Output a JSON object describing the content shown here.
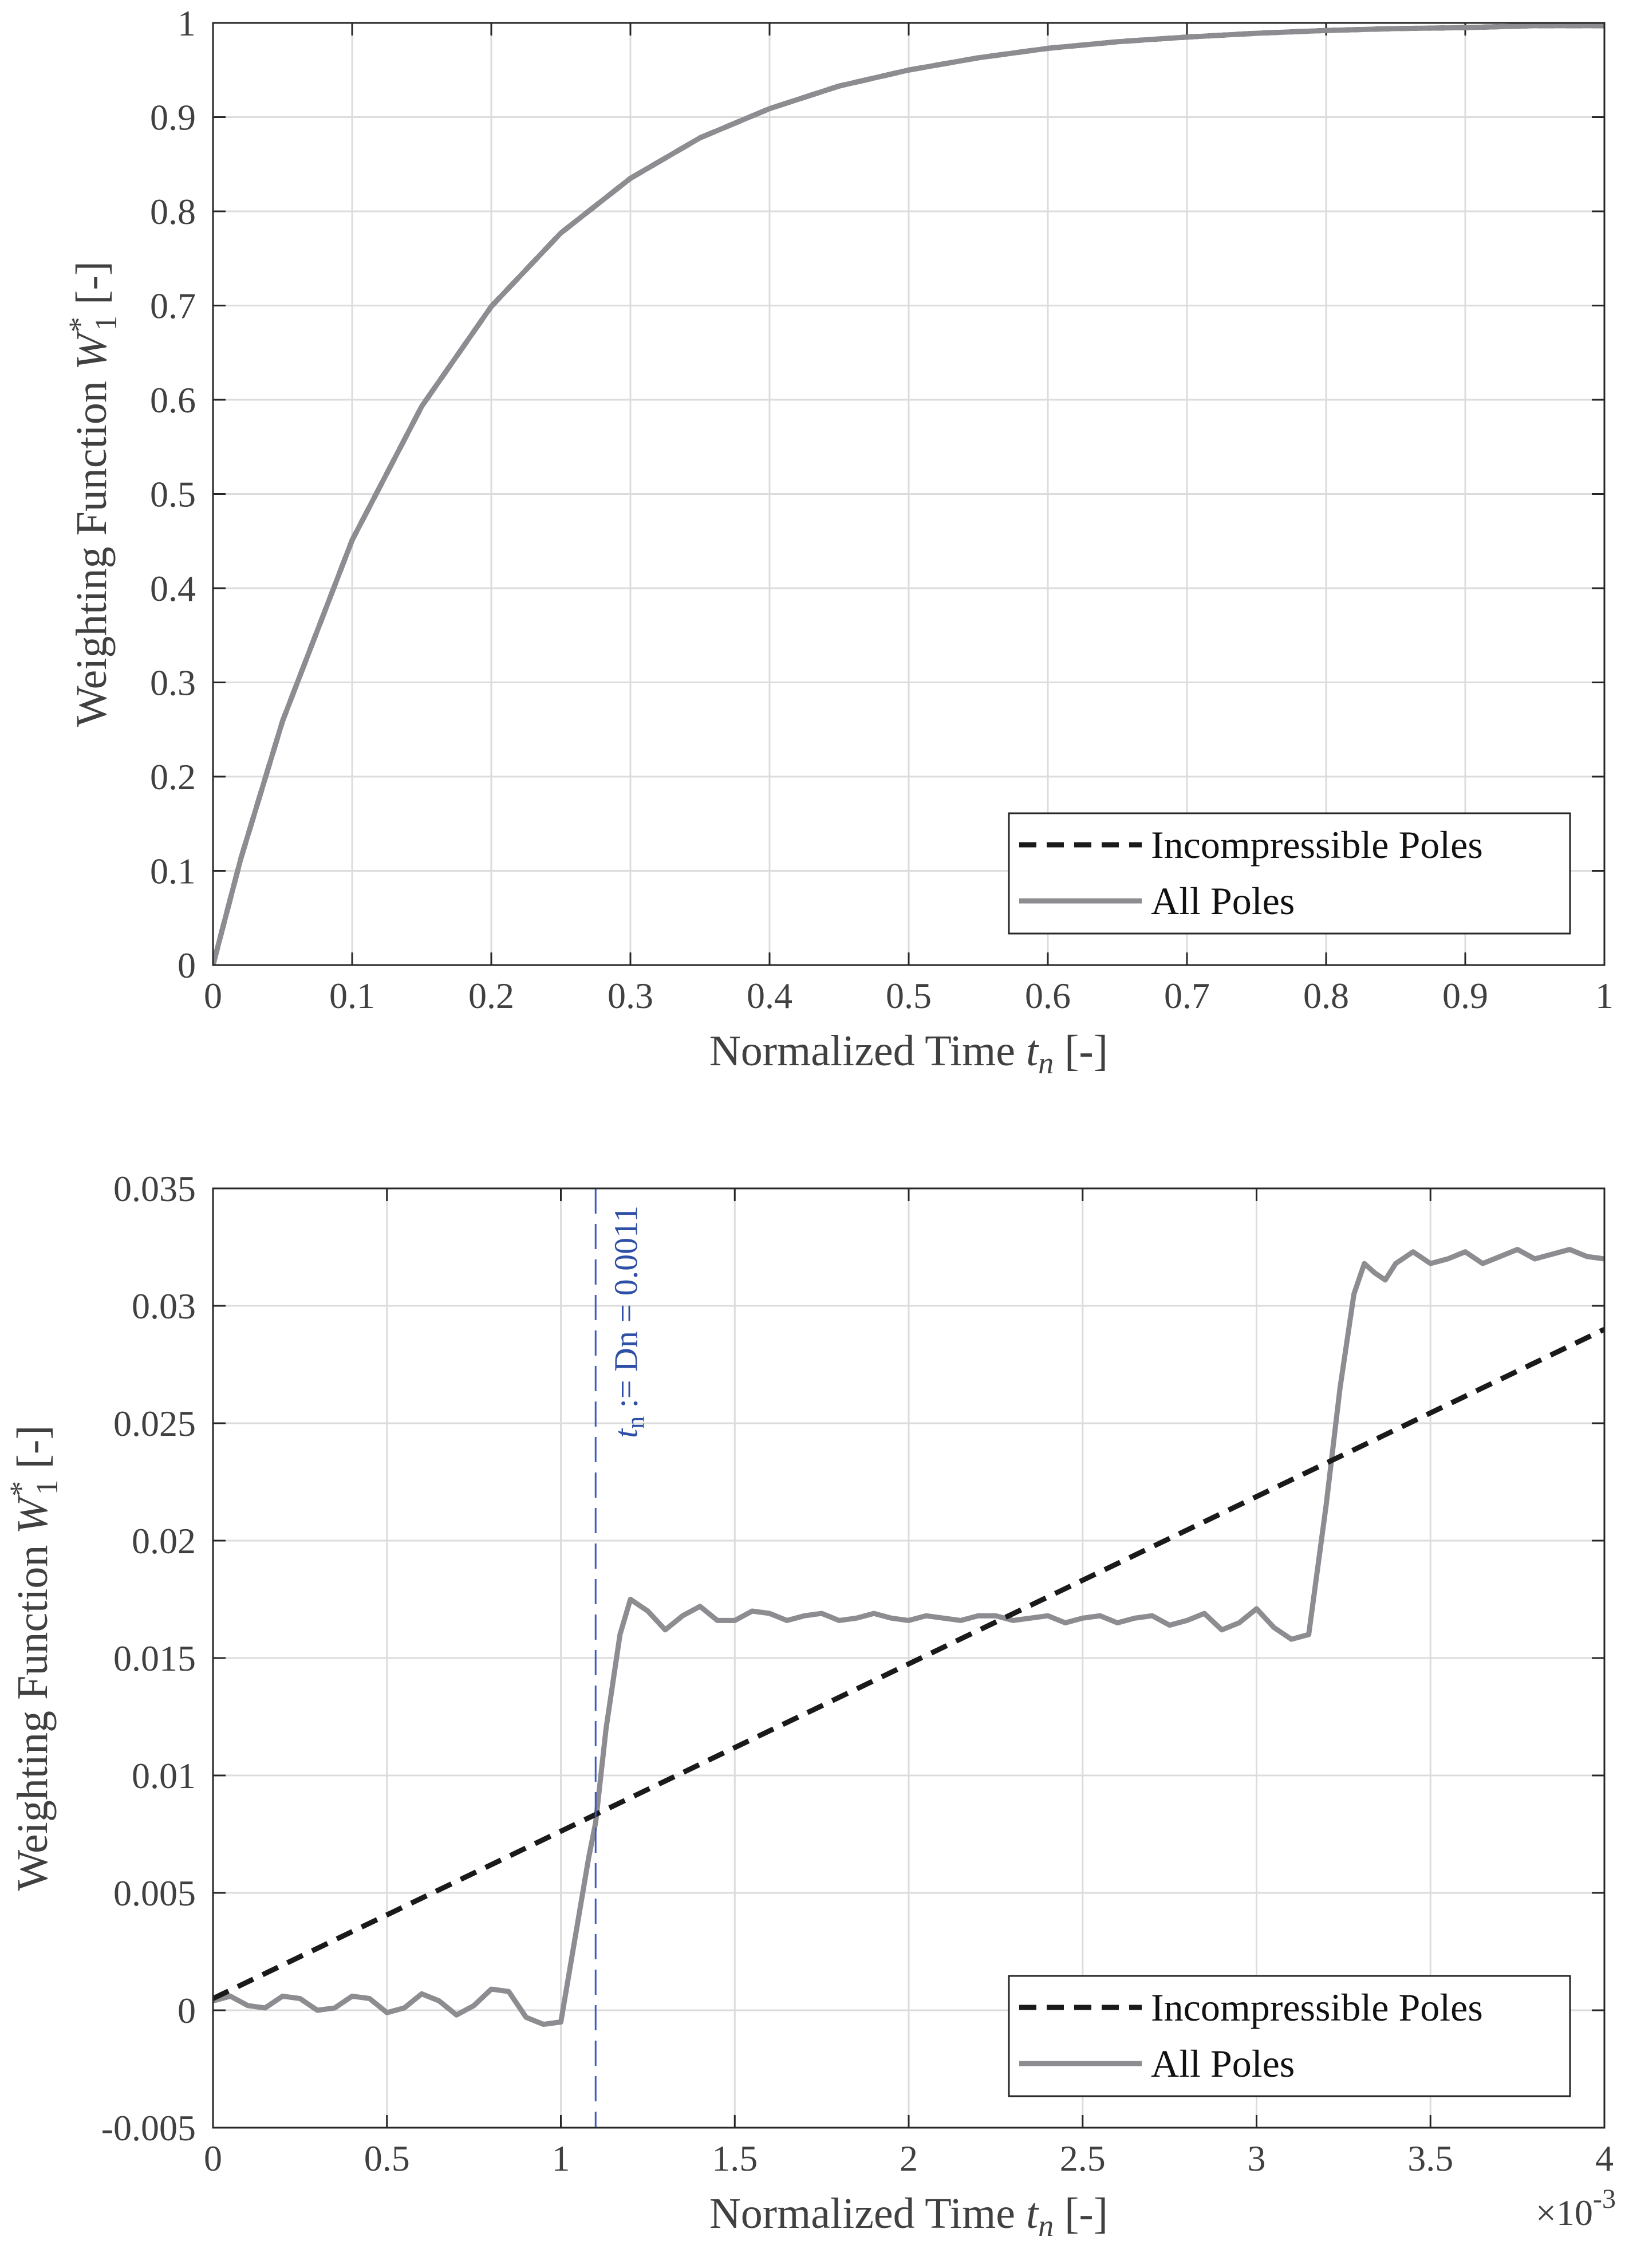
{
  "chart_data": [
    {
      "type": "line",
      "xlabel": "Normalized Time",
      "xlabel_var": "t",
      "xlabel_sub": "n",
      "xlabel_unit": "[-]",
      "ylabel": "Weighting Function",
      "ylabel_var": "W",
      "ylabel_sub": "1",
      "ylabel_sup": "*",
      "ylabel_unit": "[-]",
      "xlim": [
        0,
        1
      ],
      "ylim": [
        0,
        1
      ],
      "xticks": [
        0,
        0.1,
        0.2,
        0.3,
        0.4,
        0.5,
        0.6,
        0.7,
        0.8,
        0.9,
        1
      ],
      "xtick_labels": [
        "0",
        "0.1",
        "0.2",
        "0.3",
        "0.4",
        "0.5",
        "0.6",
        "0.7",
        "0.8",
        "0.9",
        "1"
      ],
      "yticks": [
        0,
        0.1,
        0.2,
        0.3,
        0.4,
        0.5,
        0.6,
        0.7,
        0.8,
        0.9,
        1
      ],
      "ytick_labels": [
        "0",
        "0.1",
        "0.2",
        "0.3",
        "0.4",
        "0.5",
        "0.6",
        "0.7",
        "0.8",
        "0.9",
        "1"
      ],
      "grid": true,
      "legend_position": "bottom-right",
      "series": [
        {
          "name": "Incompressible Poles",
          "style": "dashed",
          "color": "#1a1a1a",
          "x": [
            0,
            0.02,
            0.05,
            0.1,
            0.15,
            0.2,
            0.25,
            0.3,
            0.35,
            0.4,
            0.45,
            0.5,
            0.55,
            0.6,
            0.65,
            0.7,
            0.75,
            0.8,
            0.85,
            0.9,
            0.95,
            1.0
          ],
          "y": [
            0,
            0.113,
            0.259,
            0.451,
            0.593,
            0.699,
            0.777,
            0.835,
            0.878,
            0.909,
            0.933,
            0.95,
            0.963,
            0.973,
            0.98,
            0.985,
            0.989,
            0.992,
            0.994,
            0.995,
            0.997,
            0.997
          ]
        },
        {
          "name": "All Poles",
          "style": "solid",
          "color": "#8c8c91",
          "x": [
            0,
            0.02,
            0.05,
            0.1,
            0.15,
            0.2,
            0.25,
            0.3,
            0.35,
            0.4,
            0.45,
            0.5,
            0.55,
            0.6,
            0.65,
            0.7,
            0.75,
            0.8,
            0.85,
            0.9,
            0.95,
            1.0
          ],
          "y": [
            0,
            0.113,
            0.259,
            0.451,
            0.593,
            0.699,
            0.777,
            0.835,
            0.878,
            0.909,
            0.933,
            0.95,
            0.963,
            0.973,
            0.98,
            0.985,
            0.989,
            0.992,
            0.994,
            0.995,
            0.997,
            0.997
          ]
        }
      ]
    },
    {
      "type": "line",
      "xlabel": "Normalized Time",
      "xlabel_var": "t",
      "xlabel_sub": "n",
      "xlabel_unit": "[-]",
      "ylabel": "Weighting Function",
      "ylabel_var": "W",
      "ylabel_sub": "1",
      "ylabel_sup": "*",
      "ylabel_unit": "[-]",
      "x_exponent_base": "×10",
      "x_exponent_power": "-3",
      "xlim": [
        0,
        4
      ],
      "ylim": [
        -0.005,
        0.035
      ],
      "xticks": [
        0,
        0.5,
        1,
        1.5,
        2,
        2.5,
        3,
        3.5,
        4
      ],
      "xtick_labels": [
        "0",
        "0.5",
        "1",
        "1.5",
        "2",
        "2.5",
        "3",
        "3.5",
        "4"
      ],
      "yticks": [
        -0.005,
        0,
        0.005,
        0.01,
        0.015,
        0.02,
        0.025,
        0.03,
        0.035
      ],
      "ytick_labels": [
        "-0.005",
        "0",
        "0.005",
        "0.01",
        "0.015",
        "0.02",
        "0.025",
        "0.03",
        "0.035"
      ],
      "grid": true,
      "legend_position": "bottom-right",
      "vline": {
        "x": 1.1,
        "label_var": "t",
        "label_sub": "n",
        "label_rest": " := Dn = 0.0011",
        "color": "#3a5bbf"
      },
      "series": [
        {
          "name": "Incompressible Poles",
          "style": "dashed",
          "color": "#1a1a1a",
          "x": [
            0,
            4
          ],
          "y": [
            0.0005,
            0.029
          ]
        },
        {
          "name": "All Poles",
          "style": "solid",
          "color": "#8c8c91",
          "x": [
            0,
            0.05,
            0.1,
            0.15,
            0.2,
            0.25,
            0.3,
            0.35,
            0.4,
            0.45,
            0.5,
            0.55,
            0.6,
            0.65,
            0.7,
            0.75,
            0.8,
            0.85,
            0.9,
            0.95,
            1.0,
            1.04,
            1.08,
            1.1,
            1.13,
            1.17,
            1.2,
            1.25,
            1.3,
            1.35,
            1.4,
            1.45,
            1.5,
            1.55,
            1.6,
            1.65,
            1.7,
            1.75,
            1.8,
            1.85,
            1.9,
            1.95,
            2.0,
            2.05,
            2.1,
            2.15,
            2.2,
            2.25,
            2.3,
            2.35,
            2.4,
            2.45,
            2.5,
            2.55,
            2.6,
            2.65,
            2.7,
            2.75,
            2.8,
            2.85,
            2.9,
            2.95,
            3.0,
            3.05,
            3.1,
            3.15,
            3.2,
            3.24,
            3.28,
            3.31,
            3.34,
            3.37,
            3.4,
            3.45,
            3.5,
            3.55,
            3.6,
            3.65,
            3.7,
            3.75,
            3.8,
            3.85,
            3.9,
            3.95,
            4.0
          ],
          "y": [
            0.0004,
            0.0006,
            0.0002,
            0.0001,
            0.0006,
            0.0005,
            0.0,
            0.0001,
            0.0006,
            0.0005,
            -0.0001,
            0.0001,
            0.0007,
            0.0004,
            -0.0002,
            0.0002,
            0.0009,
            0.0008,
            -0.0003,
            -0.0006,
            -0.0005,
            0.003,
            0.0065,
            0.008,
            0.012,
            0.016,
            0.0175,
            0.017,
            0.0162,
            0.0168,
            0.0172,
            0.0166,
            0.0166,
            0.017,
            0.0169,
            0.0166,
            0.0168,
            0.0169,
            0.0166,
            0.0167,
            0.0169,
            0.0167,
            0.0166,
            0.0168,
            0.0167,
            0.0166,
            0.0168,
            0.0168,
            0.0166,
            0.0167,
            0.0168,
            0.0165,
            0.0167,
            0.0168,
            0.0165,
            0.0167,
            0.0168,
            0.0164,
            0.0166,
            0.0169,
            0.0162,
            0.0165,
            0.0171,
            0.0163,
            0.0158,
            0.016,
            0.0215,
            0.0265,
            0.0305,
            0.0318,
            0.0314,
            0.0311,
            0.0318,
            0.0323,
            0.0318,
            0.032,
            0.0323,
            0.0318,
            0.0321,
            0.0324,
            0.032,
            0.0322,
            0.0324,
            0.0321,
            0.032
          ]
        }
      ]
    }
  ]
}
